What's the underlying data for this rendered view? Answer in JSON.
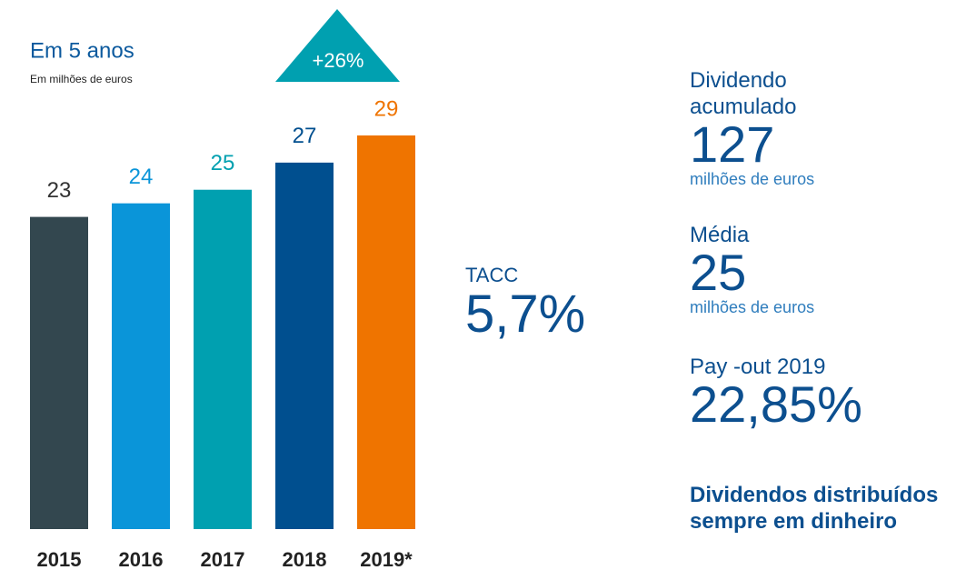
{
  "chart_data": {
    "type": "bar",
    "title": "Em 5 anos",
    "subtitle": "Em milhões de euros",
    "categories": [
      "2015",
      "2016",
      "2017",
      "2018",
      "2019*"
    ],
    "values": [
      23,
      24,
      25,
      27,
      29
    ],
    "colors": [
      "#33474f",
      "#0a95d9",
      "#00a0b0",
      "#004f8f",
      "#ef7400"
    ],
    "annotation": "+26%"
  },
  "cagr": {
    "label": "TACC",
    "value": "5,7%"
  },
  "stats": [
    {
      "label": "Dividendo acumulado",
      "value": "127",
      "unit": "milhões de euros"
    },
    {
      "label": "Média",
      "value": "25",
      "unit": "milhões de euros"
    },
    {
      "label": "Pay -out 2019",
      "value": "22,85%"
    }
  ],
  "note": "Dividendos distribuídos sempre em dinheiro"
}
